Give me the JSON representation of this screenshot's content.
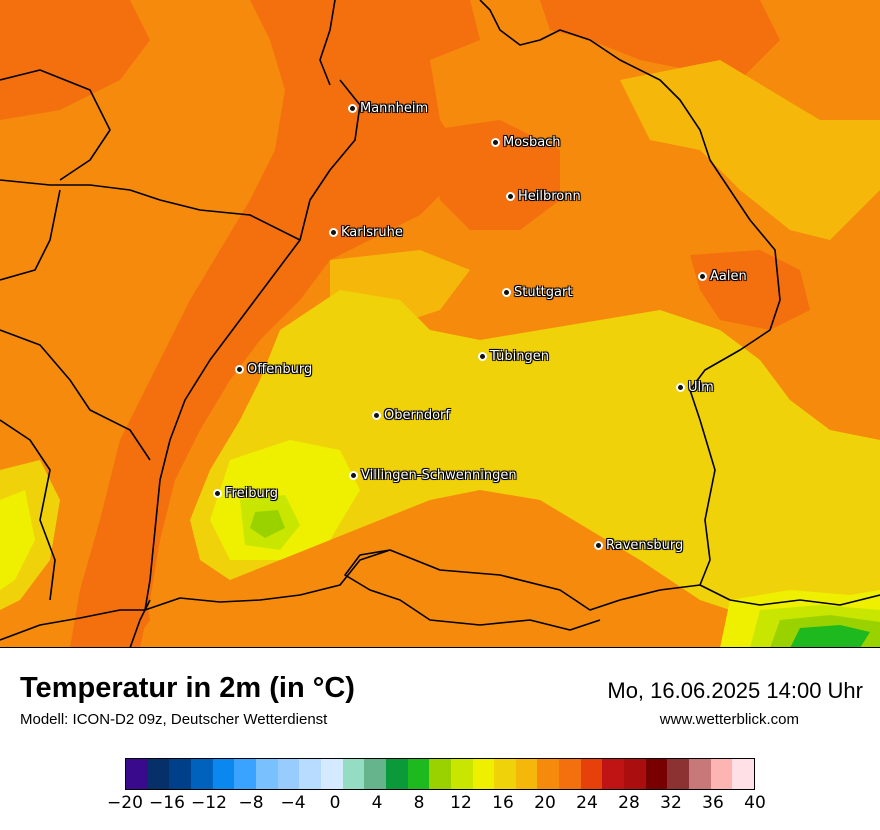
{
  "map": {
    "cities": [
      {
        "name": "Mannheim"
      },
      {
        "name": "Mosbach"
      },
      {
        "name": "Heilbronn"
      },
      {
        "name": "Karlsruhe"
      },
      {
        "name": "Aalen"
      },
      {
        "name": "Stuttgart"
      },
      {
        "name": "Tübingen"
      },
      {
        "name": "Offenburg"
      },
      {
        "name": "Ulm"
      },
      {
        "name": "Oberndorf"
      },
      {
        "name": "Villingen-Schwenningen"
      },
      {
        "name": "Freiburg"
      },
      {
        "name": "Ravensburg"
      }
    ],
    "colors": {
      "band_16_18": "#f0d20a",
      "band_18_20": "#f5b80a",
      "band_20_22": "#f58a0c",
      "band_22_24": "#f46f0e",
      "band_14_16": "#eef000",
      "band_12_14": "#c8e600",
      "band_10_12": "#9ad200",
      "band_8_10": "#1eb91e",
      "border_color": "#000000"
    }
  },
  "footer": {
    "title": "Temperatur in 2m (in °C)",
    "model": "Modell: ICON-D2 09z, Deutscher Wetterdienst",
    "datetime": "Mo, 16.06.2025 14:00 Uhr",
    "site": "www.wetterblick.com"
  },
  "legend": {
    "min": -20,
    "max": 40,
    "colors": [
      "#3a0a8c",
      "#05306a",
      "#00408a",
      "#0062bd",
      "#0a88f0",
      "#3aa2ff",
      "#78c0ff",
      "#98ccff",
      "#b8dcff",
      "#d6eaff",
      "#94dcc2",
      "#66b48c",
      "#0a9a3a",
      "#1eb91e",
      "#9ad200",
      "#c8e600",
      "#eef000",
      "#f0d20a",
      "#f5b80a",
      "#f58a0c",
      "#f46f0e",
      "#e8400a",
      "#c01414",
      "#aa0e0e",
      "#780000",
      "#8c3232",
      "#c87878",
      "#ffb4b4",
      "#ffe0e6"
    ],
    "ticks": [
      "−20",
      "−16",
      "−12",
      "−8",
      "−4",
      "0",
      "4",
      "8",
      "12",
      "16",
      "20",
      "24",
      "28",
      "32",
      "36",
      "40"
    ]
  }
}
